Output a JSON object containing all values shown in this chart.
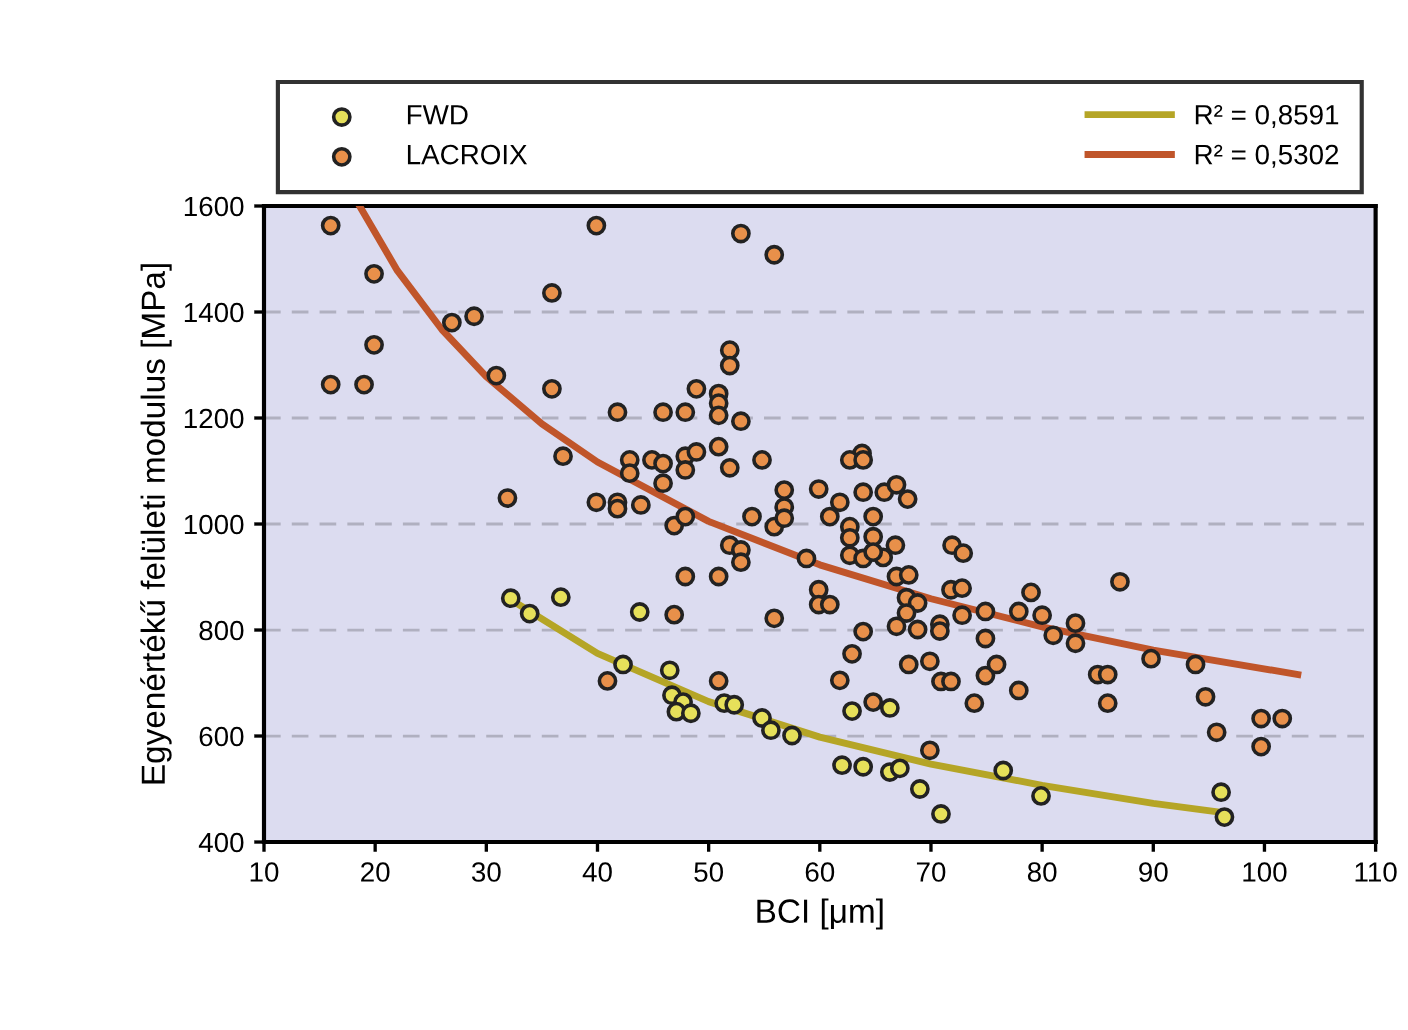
{
  "chart_data": {
    "type": "scatter",
    "xlabel": "BCI [μm]",
    "ylabel": "Egyenértékű felületi modulus [MPa]",
    "xlim": [
      10,
      110
    ],
    "xticks": [
      10,
      20,
      30,
      40,
      50,
      60,
      70,
      80,
      90,
      100,
      110
    ],
    "ylim": [
      400,
      1600
    ],
    "yticks": [
      400,
      600,
      800,
      1000,
      1200,
      1400,
      1600
    ],
    "grid": "y",
    "legend": "top",
    "series": [
      {
        "name": "FWD",
        "marker": "circle",
        "color": "#e6e05a",
        "x": [
          32.2,
          33.9,
          36.7,
          43.8,
          42.3,
          46.5,
          46.7,
          47.7,
          47.1,
          48.4,
          51.4,
          52.3,
          54.8,
          55.6,
          57.5,
          62.9,
          66.3,
          62.0,
          63.9,
          66.3,
          67.2,
          69.0,
          70.9,
          76.5,
          79.9,
          96.1,
          96.4
        ],
        "values": [
          860,
          831,
          862,
          834,
          735,
          724,
          677,
          664,
          646,
          643,
          662,
          659,
          634,
          611,
          601,
          647,
          653,
          545,
          542,
          532,
          539,
          500,
          453,
          535,
          487,
          494,
          447
        ]
      },
      {
        "name": "LACROIX",
        "marker": "circle",
        "color": "#e8904a",
        "x": [
          16.0,
          19.9,
          16.0,
          19.0,
          19.9,
          26.9,
          28.9,
          30.9,
          35.9,
          35.9,
          36.9,
          31.9,
          39.9,
          41.8,
          39.9,
          41.8,
          41.8,
          43.9,
          42.9,
          42.9,
          44.9,
          45.9,
          45.9,
          45.9,
          47.9,
          48.9,
          47.9,
          47.9,
          48.9,
          46.9,
          47.9,
          50.9,
          50.9,
          50.9,
          51.9,
          51.9,
          52.9,
          50.9,
          51.9,
          54.8,
          52.9,
          55.9,
          53.9,
          55.9,
          56.8,
          56.8,
          56.8,
          51.9,
          52.9,
          52.9,
          47.9,
          50.9,
          55.9,
          46.9,
          40.9,
          50.9,
          58.8,
          63.8,
          62.7,
          63.9,
          59.9,
          61.8,
          63.9,
          65.8,
          66.9,
          67.9,
          60.9,
          64.8,
          62.7,
          62.7,
          64.8,
          66.8,
          62.7,
          63.9,
          65.7,
          64.8,
          66.9,
          68.0,
          59.9,
          59.9,
          60.9,
          67.8,
          68.8,
          67.8,
          66.9,
          68.8,
          70.8,
          70.8,
          63.9,
          71.9,
          72.9,
          71.8,
          72.8,
          72.8,
          74.9,
          74.9,
          77.9,
          79.0,
          80.0,
          81.0,
          83.0,
          83.0,
          87.0,
          85.0,
          85.9,
          85.9,
          89.8,
          93.8,
          94.7,
          95.7,
          99.7,
          101.6,
          99.7,
          62.9,
          61.8,
          68.0,
          69.9,
          70.9,
          71.8,
          74.9,
          75.9,
          73.9,
          77.9,
          64.8,
          69.9
        ],
        "values": [
          1563,
          1472,
          1263,
          1263,
          1338,
          1380,
          1392,
          1280,
          1436,
          1255,
          1128,
          1049,
          1563,
          1211,
          1041,
          1041,
          1029,
          1036,
          1121,
          1096,
          1121,
          1114,
          1077,
          1211,
          1211,
          1255,
          1128,
          1102,
          1136,
          997,
          1014,
          1246,
          1228,
          1205,
          1328,
          1299,
          1194,
          1146,
          1106,
          1121,
          1548,
          1508,
          1014,
          995,
          1064,
          1032,
          1011,
          960,
          951,
          928,
          901,
          901,
          822,
          829,
          704,
          704,
          935,
          1133,
          1121,
          1121,
          1066,
          1041,
          1060,
          1060,
          1074,
          1047,
          1014,
          1014,
          995,
          974,
          976,
          960,
          941,
          935,
          937,
          947,
          901,
          904,
          876,
          848,
          848,
          861,
          851,
          832,
          807,
          801,
          811,
          798,
          797,
          960,
          945,
          876,
          879,
          828,
          835,
          784,
          835,
          871,
          828,
          790,
          813,
          775,
          891,
          716,
          716,
          662,
          746,
          735,
          674,
          607,
          633,
          633,
          580,
          755,
          705,
          735,
          741,
          703,
          703,
          714,
          735,
          662,
          686,
          664,
          573
        ]
      },
      {
        "name": "R² = 0,8591",
        "type": "line",
        "marker": "none",
        "color": "#b5a526",
        "x": [
          32,
          40,
          50,
          60,
          70,
          80,
          90,
          96.5
        ],
        "values": [
          860,
          756,
          665,
          598,
          547,
          507,
          473,
          455
        ]
      },
      {
        "name": "R² = 0,5302",
        "type": "line",
        "marker": "none",
        "color": "#c0552a",
        "x": [
          18.6,
          22,
          26,
          30,
          35,
          40,
          50,
          60,
          70,
          80,
          90,
          103
        ],
        "values": [
          1600,
          1478,
          1367,
          1278,
          1189,
          1117,
          1005,
          923,
          859,
          806,
          762,
          716
        ]
      }
    ]
  }
}
